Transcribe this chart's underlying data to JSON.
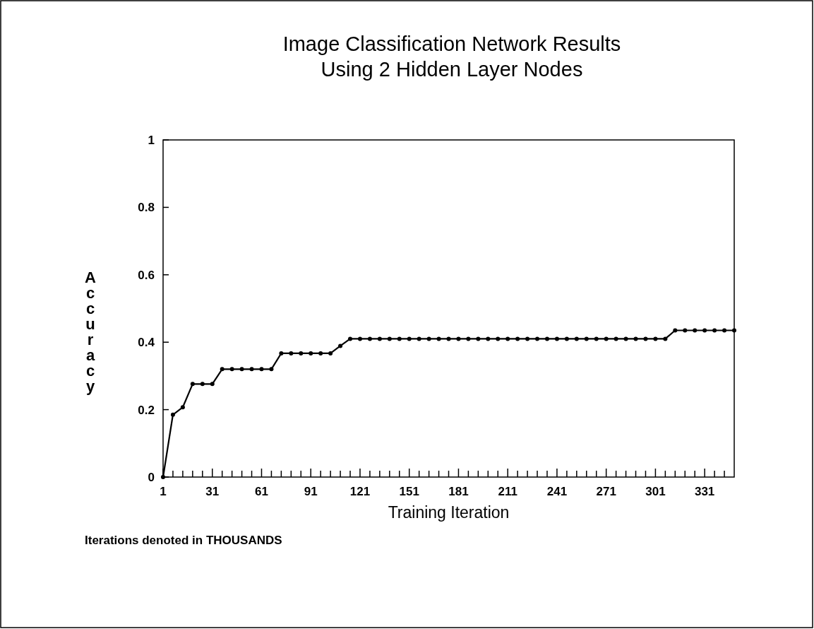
{
  "chart_data": {
    "type": "line",
    "title": "Image Classification Network Results\nUsing 2 Hidden Layer Nodes",
    "xlabel": "Training Iteration",
    "ylabel": "Accuracy",
    "annotations": [
      "Iterations denoted in THOUSANDS"
    ],
    "x": [
      1,
      7,
      13,
      19,
      25,
      31,
      37,
      43,
      49,
      55,
      61,
      67,
      73,
      79,
      85,
      91,
      97,
      103,
      109,
      115,
      121,
      127,
      133,
      139,
      145,
      151,
      157,
      163,
      169,
      175,
      181,
      187,
      193,
      199,
      205,
      211,
      217,
      223,
      229,
      235,
      241,
      247,
      253,
      259,
      265,
      271,
      277,
      283,
      289,
      295,
      301,
      307,
      313,
      319,
      325,
      331,
      337,
      343,
      349
    ],
    "series": [
      {
        "color": "#000000",
        "values": [
          0,
          0.185,
          0.207,
          0.276,
          0.276,
          0.276,
          0.32,
          0.32,
          0.32,
          0.32,
          0.32,
          0.32,
          0.367,
          0.367,
          0.367,
          0.367,
          0.367,
          0.367,
          0.389,
          0.41,
          0.41,
          0.41,
          0.41,
          0.41,
          0.41,
          0.41,
          0.41,
          0.41,
          0.41,
          0.41,
          0.41,
          0.41,
          0.41,
          0.41,
          0.41,
          0.41,
          0.41,
          0.41,
          0.41,
          0.41,
          0.41,
          0.41,
          0.41,
          0.41,
          0.41,
          0.41,
          0.41,
          0.41,
          0.41,
          0.41,
          0.41,
          0.41,
          0.435,
          0.435,
          0.435,
          0.435,
          0.435,
          0.435,
          0.435
        ]
      }
    ],
    "xlim": [
      1,
      349
    ],
    "ylim": [
      0,
      1
    ],
    "xticks": [
      1,
      {
        "value": 7,
        "label": null
      },
      {
        "value": 13,
        "label": null
      },
      {
        "value": 19,
        "label": null
      },
      {
        "value": 25,
        "label": null
      },
      31,
      {
        "value": 37,
        "label": null
      },
      {
        "value": 43,
        "label": null
      },
      {
        "value": 49,
        "label": null
      },
      {
        "value": 55,
        "label": null
      },
      61,
      {
        "value": 67,
        "label": null
      },
      {
        "value": 73,
        "label": null
      },
      {
        "value": 79,
        "label": null
      },
      {
        "value": 85,
        "label": null
      },
      91,
      {
        "value": 97,
        "label": null
      },
      {
        "value": 103,
        "label": null
      },
      {
        "value": 109,
        "label": null
      },
      {
        "value": 115,
        "label": null
      },
      121,
      {
        "value": 127,
        "label": null
      },
      {
        "value": 133,
        "label": null
      },
      {
        "value": 139,
        "label": null
      },
      {
        "value": 145,
        "label": null
      },
      151,
      {
        "value": 157,
        "label": null
      },
      {
        "value": 163,
        "label": null
      },
      {
        "value": 169,
        "label": null
      },
      {
        "value": 175,
        "label": null
      },
      181,
      {
        "value": 187,
        "label": null
      },
      {
        "value": 193,
        "label": null
      },
      {
        "value": 199,
        "label": null
      },
      {
        "value": 205,
        "label": null
      },
      211,
      {
        "value": 217,
        "label": null
      },
      {
        "value": 223,
        "label": null
      },
      {
        "value": 229,
        "label": null
      },
      {
        "value": 235,
        "label": null
      },
      241,
      {
        "value": 247,
        "label": null
      },
      {
        "value": 253,
        "label": null
      },
      {
        "value": 259,
        "label": null
      },
      {
        "value": 265,
        "label": null
      },
      271,
      {
        "value": 277,
        "label": null
      },
      {
        "value": 283,
        "label": null
      },
      {
        "value": 289,
        "label": null
      },
      {
        "value": 295,
        "label": null
      },
      301,
      {
        "value": 307,
        "label": null
      },
      {
        "value": 313,
        "label": null
      },
      {
        "value": 319,
        "label": null
      },
      {
        "value": 325,
        "label": null
      },
      331,
      {
        "value": 337,
        "label": null
      },
      {
        "value": 343,
        "label": null
      }
    ],
    "yticks": [
      0,
      {
        "value": 0.2,
        "label": "0.2"
      },
      {
        "value": 0.4,
        "label": "0.4"
      },
      {
        "value": 0.6,
        "label": "0.6"
      },
      {
        "value": 0.8,
        "label": "0.8"
      },
      1
    ],
    "marker": "circle",
    "line_style": "solid",
    "grid": false
  }
}
